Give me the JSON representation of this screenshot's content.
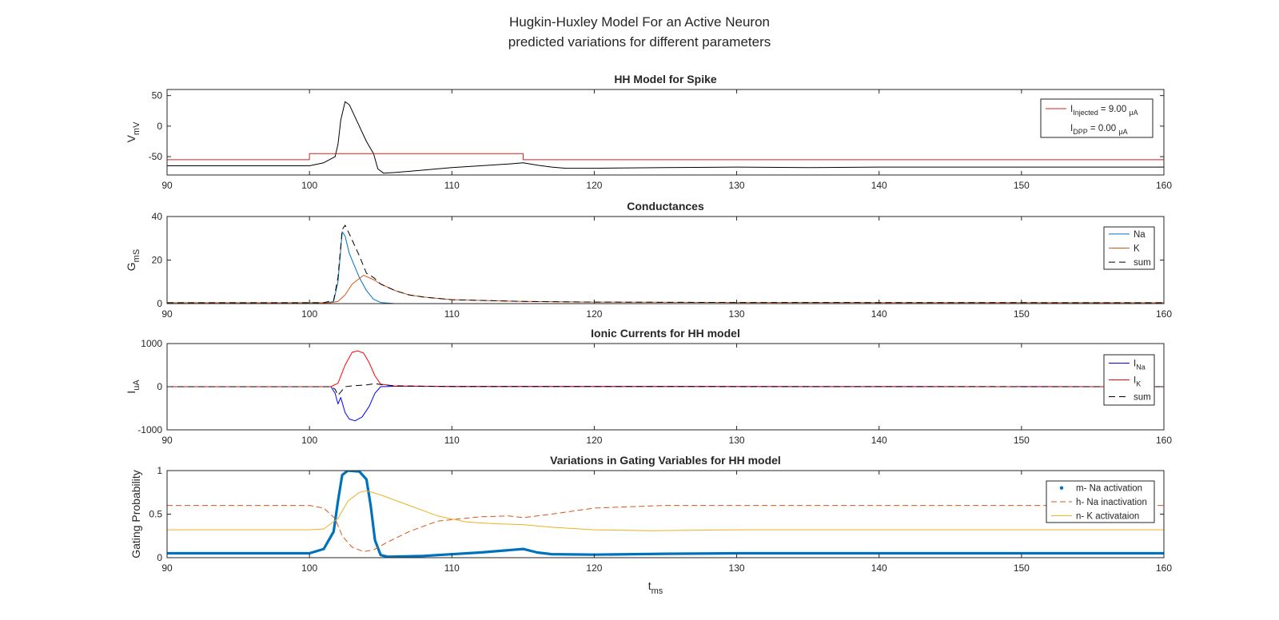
{
  "figure": {
    "title_line1": "Hugkin-Huxley Model For an Active Neuron",
    "title_line2": "predicted variations for different parameters",
    "xlabel_main": "t",
    "xlabel_sub": "ms"
  },
  "chart_data": [
    {
      "type": "line",
      "title": "HH Model for Spike",
      "ylabel_main": "V",
      "ylabel_sub": "mV",
      "xlim": [
        90,
        160
      ],
      "ylim": [
        -80,
        60
      ],
      "xticks": [
        90,
        100,
        110,
        120,
        130,
        140,
        150,
        160
      ],
      "yticks": [
        -50,
        0,
        50
      ],
      "legend": "top-right",
      "series": [
        {
          "key": "vm",
          "color": "#000000",
          "width": 1,
          "dash": "",
          "points": [
            [
              90,
              -65
            ],
            [
              100,
              -65
            ],
            [
              101,
              -60
            ],
            [
              101.8,
              -50
            ],
            [
              102,
              -30
            ],
            [
              102.2,
              10
            ],
            [
              102.5,
              40
            ],
            [
              102.8,
              35
            ],
            [
              103.3,
              10
            ],
            [
              104,
              -25
            ],
            [
              104.5,
              -45
            ],
            [
              104.8,
              -70
            ],
            [
              105.2,
              -77
            ],
            [
              106,
              -76
            ],
            [
              108,
              -72
            ],
            [
              110,
              -68
            ],
            [
              112,
              -65
            ],
            [
              114,
              -62
            ],
            [
              115,
              -60
            ],
            [
              116,
              -64
            ],
            [
              117,
              -67
            ],
            [
              118,
              -69
            ],
            [
              120,
              -69
            ],
            [
              125,
              -68
            ],
            [
              130,
              -67
            ],
            [
              135,
              -68
            ],
            [
              140,
              -67
            ],
            [
              150,
              -67
            ],
            [
              160,
              -67
            ]
          ]
        },
        {
          "key": "iinj",
          "color": "#d42020",
          "width": 1,
          "dash": "",
          "points": [
            [
              90,
              -55
            ],
            [
              100,
              -55
            ],
            [
              100,
              -45
            ],
            [
              115,
              -45
            ],
            [
              115,
              -55
            ],
            [
              160,
              -55
            ]
          ]
        }
      ],
      "legend_entries": [
        {
          "color": "#d42020",
          "dash": "",
          "marker": "",
          "main": "I",
          "sub": "Injected",
          "rest": " = 9.00 ",
          "unit": "μA"
        },
        {
          "color": "",
          "dash": "",
          "marker": "",
          "main": "I",
          "sub": "DPP",
          "rest": " = 0.00 ",
          "unit": "μA"
        }
      ]
    },
    {
      "type": "line",
      "title": "Conductances",
      "ylabel_main": "G",
      "ylabel_sub": "mS",
      "xlim": [
        90,
        160
      ],
      "ylim": [
        0,
        40
      ],
      "xticks": [
        90,
        100,
        110,
        120,
        130,
        140,
        150,
        160
      ],
      "yticks": [
        0,
        20,
        40
      ],
      "legend": "top-right",
      "series": [
        {
          "key": "na",
          "name": "Na",
          "color": "#0072bd",
          "width": 1,
          "dash": "",
          "points": [
            [
              90,
              0
            ],
            [
              101,
              0
            ],
            [
              101.7,
              1
            ],
            [
              102,
              10
            ],
            [
              102.3,
              33
            ],
            [
              102.5,
              31
            ],
            [
              102.8,
              23
            ],
            [
              103.5,
              12
            ],
            [
              104,
              6
            ],
            [
              104.5,
              2
            ],
            [
              105,
              0.5
            ],
            [
              106,
              0
            ],
            [
              160,
              0
            ]
          ]
        },
        {
          "key": "k",
          "name": "K",
          "color": "#d95319",
          "width": 1,
          "dash": "",
          "points": [
            [
              90,
              0.4
            ],
            [
              101.5,
              0.4
            ],
            [
              102,
              1
            ],
            [
              102.5,
              4
            ],
            [
              103,
              9
            ],
            [
              103.8,
              13
            ],
            [
              104.5,
              11
            ],
            [
              105,
              9
            ],
            [
              106,
              6
            ],
            [
              107,
              4
            ],
            [
              108,
              3
            ],
            [
              110,
              1.8
            ],
            [
              115,
              1
            ],
            [
              120,
              0.7
            ],
            [
              130,
              0.5
            ],
            [
              160,
              0.4
            ]
          ]
        },
        {
          "key": "sum",
          "name": "sum",
          "color": "#000000",
          "width": 1,
          "dash": "8,5",
          "points": [
            [
              90,
              0.4
            ],
            [
              101,
              0.4
            ],
            [
              101.7,
              1.5
            ],
            [
              102,
              12
            ],
            [
              102.3,
              34
            ],
            [
              102.5,
              36
            ],
            [
              102.8,
              32
            ],
            [
              103.5,
              22
            ],
            [
              104,
              14
            ],
            [
              104.5,
              12
            ],
            [
              105,
              9
            ],
            [
              106,
              6
            ],
            [
              107,
              4
            ],
            [
              108,
              3
            ],
            [
              110,
              1.8
            ],
            [
              115,
              1
            ],
            [
              120,
              0.7
            ],
            [
              130,
              0.5
            ],
            [
              160,
              0.4
            ]
          ]
        }
      ],
      "legend_entries": [
        {
          "color": "#0072bd",
          "dash": "",
          "marker": "",
          "main": "Na",
          "sub": "",
          "rest": "",
          "unit": ""
        },
        {
          "color": "#d95319",
          "dash": "",
          "marker": "",
          "main": "K",
          "sub": "",
          "rest": "",
          "unit": ""
        },
        {
          "color": "#000000",
          "dash": "8,5",
          "marker": "",
          "main": "sum",
          "sub": "",
          "rest": "",
          "unit": ""
        }
      ]
    },
    {
      "type": "line",
      "title": "Ionic Currents for HH model",
      "ylabel_main": "I",
      "ylabel_sub": "uA",
      "xlim": [
        90,
        160
      ],
      "ylim": [
        -1000,
        1000
      ],
      "xticks": [
        90,
        100,
        110,
        120,
        130,
        140,
        150,
        160
      ],
      "yticks": [
        -1000,
        0,
        1000
      ],
      "legend": "top-right",
      "series": [
        {
          "key": "ina",
          "name": "I_Na",
          "color": "#0000ff",
          "width": 1,
          "dash": "",
          "points": [
            [
              90,
              0
            ],
            [
              101.5,
              0
            ],
            [
              101.8,
              -150
            ],
            [
              102,
              -400
            ],
            [
              102.2,
              -250
            ],
            [
              102.5,
              -600
            ],
            [
              102.8,
              -750
            ],
            [
              103.2,
              -790
            ],
            [
              103.7,
              -700
            ],
            [
              104.2,
              -450
            ],
            [
              104.6,
              -150
            ],
            [
              105,
              0
            ],
            [
              106,
              10
            ],
            [
              110,
              5
            ],
            [
              160,
              0
            ]
          ]
        },
        {
          "key": "ik",
          "name": "I_K",
          "color": "#ff0000",
          "width": 1,
          "dash": "",
          "points": [
            [
              90,
              0
            ],
            [
              101.5,
              0
            ],
            [
              102,
              80
            ],
            [
              102.5,
              500
            ],
            [
              103,
              800
            ],
            [
              103.4,
              830
            ],
            [
              103.8,
              780
            ],
            [
              104.2,
              550
            ],
            [
              104.6,
              250
            ],
            [
              105,
              60
            ],
            [
              106,
              15
            ],
            [
              110,
              5
            ],
            [
              160,
              0
            ]
          ]
        },
        {
          "key": "isum",
          "name": "sum",
          "color": "#000000",
          "width": 1,
          "dash": "8,5",
          "points": [
            [
              90,
              0
            ],
            [
              101.5,
              0
            ],
            [
              101.8,
              -60
            ],
            [
              102,
              -200
            ],
            [
              102.5,
              0
            ],
            [
              103,
              20
            ],
            [
              104,
              40
            ],
            [
              104.6,
              70
            ],
            [
              105,
              50
            ],
            [
              106,
              20
            ],
            [
              110,
              5
            ],
            [
              160,
              0
            ]
          ]
        }
      ],
      "legend_entries": [
        {
          "color": "#0000ff",
          "dash": "",
          "marker": "",
          "main": "I",
          "sub": "Na",
          "rest": "",
          "unit": ""
        },
        {
          "color": "#ff0000",
          "dash": "",
          "marker": "",
          "main": "I",
          "sub": "K",
          "rest": "",
          "unit": ""
        },
        {
          "color": "#000000",
          "dash": "8,5",
          "marker": "",
          "main": "sum",
          "sub": "",
          "rest": "",
          "unit": ""
        }
      ]
    },
    {
      "type": "line",
      "title": "Variations in Gating Variables for HH model",
      "ylabel_main": "Gating Probability",
      "ylabel_sub": "",
      "xlim": [
        90,
        160
      ],
      "ylim": [
        0,
        1
      ],
      "xticks": [
        90,
        100,
        110,
        120,
        130,
        140,
        150,
        160
      ],
      "yticks": [
        0,
        0.5,
        1
      ],
      "legend": "top-right",
      "series": [
        {
          "key": "m",
          "name": "m- Na activation",
          "color": "#0072bd",
          "width": 3.2,
          "dash": "",
          "points": [
            [
              90,
              0.05
            ],
            [
              100,
              0.05
            ],
            [
              101,
              0.1
            ],
            [
              101.7,
              0.3
            ],
            [
              102,
              0.65
            ],
            [
              102.3,
              0.95
            ],
            [
              102.7,
              1
            ],
            [
              103.5,
              0.99
            ],
            [
              104,
              0.9
            ],
            [
              104.3,
              0.6
            ],
            [
              104.6,
              0.2
            ],
            [
              105,
              0.03
            ],
            [
              105.5,
              0.01
            ],
            [
              108,
              0.02
            ],
            [
              112,
              0.06
            ],
            [
              115,
              0.1
            ],
            [
              116,
              0.06
            ],
            [
              117,
              0.04
            ],
            [
              120,
              0.035
            ],
            [
              125,
              0.045
            ],
            [
              130,
              0.05
            ],
            [
              140,
              0.05
            ],
            [
              160,
              0.05
            ]
          ]
        },
        {
          "key": "h",
          "name": "h- Na inactivation",
          "color": "#d95319",
          "width": 1,
          "dash": "7,4",
          "points": [
            [
              90,
              0.6
            ],
            [
              100,
              0.6
            ],
            [
              101,
              0.57
            ],
            [
              101.8,
              0.45
            ],
            [
              102.3,
              0.25
            ],
            [
              103,
              0.12
            ],
            [
              103.8,
              0.07
            ],
            [
              104.5,
              0.09
            ],
            [
              105.5,
              0.18
            ],
            [
              107,
              0.3
            ],
            [
              109,
              0.42
            ],
            [
              112,
              0.47
            ],
            [
              114,
              0.48
            ],
            [
              115,
              0.46
            ],
            [
              117,
              0.5
            ],
            [
              120,
              0.57
            ],
            [
              125,
              0.6
            ],
            [
              160,
              0.6
            ]
          ]
        },
        {
          "key": "n",
          "name": "n- K activataion",
          "color": "#edb120",
          "width": 1,
          "dash": "",
          "points": [
            [
              90,
              0.32
            ],
            [
              100,
              0.32
            ],
            [
              101,
              0.33
            ],
            [
              102,
              0.45
            ],
            [
              102.7,
              0.65
            ],
            [
              103.5,
              0.75
            ],
            [
              104,
              0.77
            ],
            [
              105,
              0.72
            ],
            [
              107,
              0.6
            ],
            [
              109,
              0.48
            ],
            [
              111,
              0.41
            ],
            [
              113,
              0.39
            ],
            [
              115,
              0.38
            ],
            [
              117,
              0.35
            ],
            [
              120,
              0.32
            ],
            [
              124,
              0.31
            ],
            [
              130,
              0.32
            ],
            [
              160,
              0.32
            ]
          ]
        }
      ],
      "legend_entries": [
        {
          "color": "#0072bd",
          "dash": "",
          "marker": "dot",
          "main": "m- Na activation",
          "sub": "",
          "rest": "",
          "unit": ""
        },
        {
          "color": "#d95319",
          "dash": "7,4",
          "marker": "",
          "main": "h- Na inactivation",
          "sub": "",
          "rest": "",
          "unit": ""
        },
        {
          "color": "#edb120",
          "dash": "",
          "marker": "",
          "main": "n- K activataion",
          "sub": "",
          "rest": "",
          "unit": ""
        }
      ]
    }
  ]
}
